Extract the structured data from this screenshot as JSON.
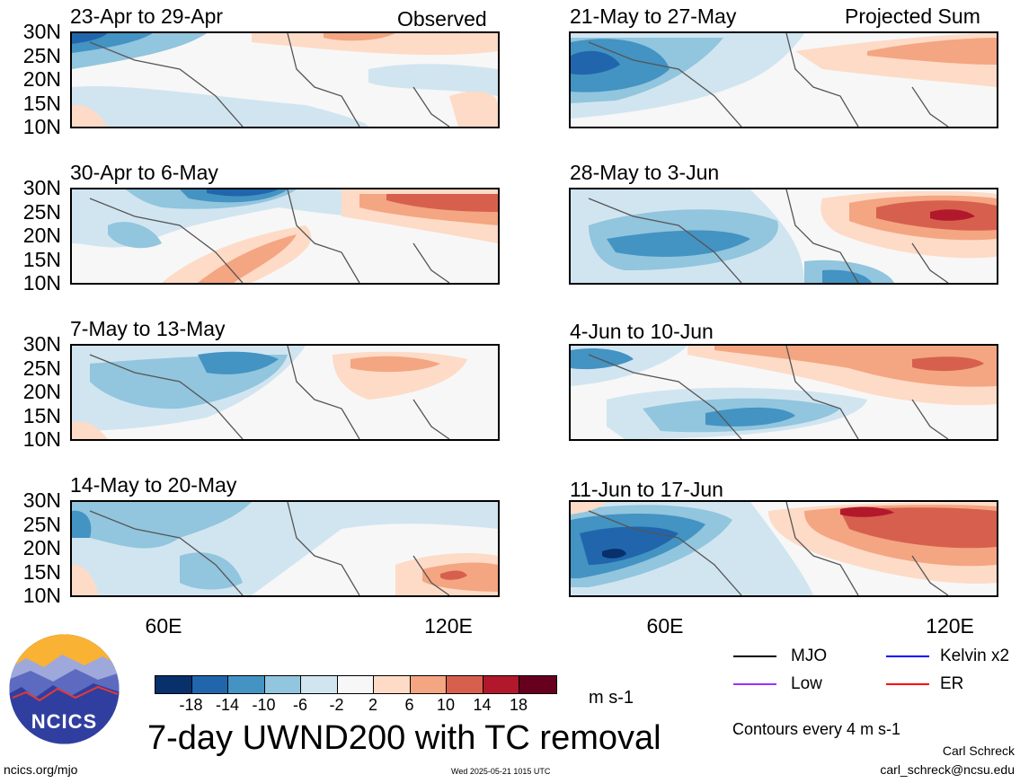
{
  "panels": [
    {
      "title": "23-Apr to 29-Apr",
      "tag": "Observed"
    },
    {
      "title": "30-Apr to 6-May",
      "tag": ""
    },
    {
      "title": "7-May to 13-May",
      "tag": ""
    },
    {
      "title": "14-May to 20-May",
      "tag": ""
    },
    {
      "title": "21-May to 27-May",
      "tag": "Projected Sum"
    },
    {
      "title": "28-May to 3-Jun",
      "tag": ""
    },
    {
      "title": "4-Jun to 10-Jun",
      "tag": ""
    },
    {
      "title": "11-Jun to 17-Jun",
      "tag": ""
    }
  ],
  "lat_labels": [
    "30N",
    "25N",
    "20N",
    "15N",
    "10N"
  ],
  "lon_labels": [
    "60E",
    "120E"
  ],
  "colorbar": {
    "labels": [
      "-18",
      "-14",
      "-10",
      "-6",
      "-2",
      "2",
      "6",
      "10",
      "14",
      "18"
    ],
    "colors": [
      "#08306b",
      "#2166ac",
      "#4393c3",
      "#92c5de",
      "#d1e5f0",
      "#f7f7f7",
      "#fddbc7",
      "#f4a582",
      "#d6604d",
      "#b2182b",
      "#67001f"
    ],
    "units": "m s-1"
  },
  "title": "7-day UWND200 with TC removal",
  "legend": {
    "mjo": "MJO",
    "kelvin": "Kelvin x2",
    "low": "Low",
    "er": "ER",
    "colors": {
      "mjo": "#000000",
      "kelvin": "#0000ff",
      "low": "#9b30ff",
      "er": "#ff0000"
    }
  },
  "contour_note": "Contours every 4 m s-1",
  "footer": {
    "left": "ncics.org/mjo",
    "timestamp": "Wed 2025-05-21 1015 UTC",
    "author": "Carl Schreck",
    "email": "carl_schreck@ncsu.edu"
  },
  "logo_text": "NCICS"
}
